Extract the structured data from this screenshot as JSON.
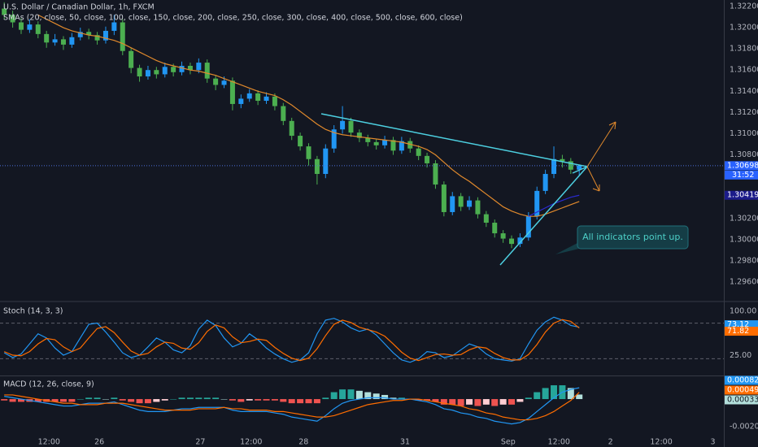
{
  "chart_data": [
    {
      "type": "candlestick",
      "title": "U.S. Dollar / Canadian Dollar, 1h, FXCM",
      "subtitle": "SMAs (20, close, 50, close, 100, close, 150, close, 200, close, 250, close, 300, close, 400, close, 500, close, 600, close)",
      "up_color": "#2196f3",
      "down_color": "#4caf50",
      "grid": true,
      "candles": [
        [
          1.3218,
          1.3224,
          1.3208,
          1.3212
        ],
        [
          1.3212,
          1.3216,
          1.32,
          1.3205
        ],
        [
          1.3205,
          1.3209,
          1.3194,
          1.3198
        ],
        [
          1.3198,
          1.3208,
          1.3195,
          1.3203
        ],
        [
          1.3203,
          1.3206,
          1.319,
          1.3194
        ],
        [
          1.3194,
          1.3197,
          1.3181,
          1.3186
        ],
        [
          1.3186,
          1.3194,
          1.3183,
          1.3189
        ],
        [
          1.3189,
          1.3192,
          1.3179,
          1.3184
        ],
        [
          1.3184,
          1.3195,
          1.3181,
          1.3191
        ],
        [
          1.3191,
          1.32,
          1.3188,
          1.3196
        ],
        [
          1.3196,
          1.3199,
          1.3189,
          1.3193
        ],
        [
          1.3193,
          1.3196,
          1.3184,
          1.3188
        ],
        [
          1.3188,
          1.3201,
          1.3185,
          1.3197
        ],
        [
          1.3197,
          1.3212,
          1.3193,
          1.3205
        ],
        [
          1.3205,
          1.3208,
          1.3174,
          1.3178
        ],
        [
          1.3178,
          1.3181,
          1.3157,
          1.3162
        ],
        [
          1.3162,
          1.3165,
          1.3149,
          1.3154
        ],
        [
          1.3154,
          1.3164,
          1.3151,
          1.316
        ],
        [
          1.316,
          1.3163,
          1.3152,
          1.3156
        ],
        [
          1.3156,
          1.3167,
          1.3153,
          1.3163
        ],
        [
          1.3163,
          1.3166,
          1.3154,
          1.3158
        ],
        [
          1.3158,
          1.3168,
          1.3155,
          1.3164
        ],
        [
          1.3164,
          1.3167,
          1.3156,
          1.316
        ],
        [
          1.316,
          1.3171,
          1.3157,
          1.3167
        ],
        [
          1.3167,
          1.317,
          1.3148,
          1.3152
        ],
        [
          1.3152,
          1.3155,
          1.3141,
          1.3146
        ],
        [
          1.3146,
          1.3154,
          1.3143,
          1.315
        ],
        [
          1.315,
          1.3153,
          1.3122,
          1.3128
        ],
        [
          1.3128,
          1.3137,
          1.3124,
          1.3133
        ],
        [
          1.3133,
          1.3142,
          1.313,
          1.3138
        ],
        [
          1.3138,
          1.3141,
          1.3127,
          1.3131
        ],
        [
          1.3131,
          1.3139,
          1.3128,
          1.3135
        ],
        [
          1.3135,
          1.3138,
          1.3122,
          1.3126
        ],
        [
          1.3126,
          1.3129,
          1.3108,
          1.3112
        ],
        [
          1.3112,
          1.3115,
          1.3094,
          1.3098
        ],
        [
          1.3098,
          1.3101,
          1.3084,
          1.3088
        ],
        [
          1.3088,
          1.3091,
          1.307,
          1.3076
        ],
        [
          1.3076,
          1.3079,
          1.3052,
          1.3062
        ],
        [
          1.3062,
          1.309,
          1.3058,
          1.3086
        ],
        [
          1.3086,
          1.3108,
          1.3082,
          1.3104
        ],
        [
          1.3104,
          1.3126,
          1.31,
          1.3112
        ],
        [
          1.3112,
          1.3115,
          1.3097,
          1.3101
        ],
        [
          1.3101,
          1.3104,
          1.3092,
          1.3096
        ],
        [
          1.3096,
          1.3099,
          1.3088,
          1.3092
        ],
        [
          1.3092,
          1.3095,
          1.3085,
          1.3089
        ],
        [
          1.3089,
          1.3098,
          1.3086,
          1.3094
        ],
        [
          1.3094,
          1.3097,
          1.308,
          1.3084
        ],
        [
          1.3084,
          1.3097,
          1.3081,
          1.3093
        ],
        [
          1.3093,
          1.3096,
          1.3082,
          1.3086
        ],
        [
          1.3086,
          1.3089,
          1.3075,
          1.3079
        ],
        [
          1.3079,
          1.3082,
          1.3068,
          1.3072
        ],
        [
          1.3072,
          1.3075,
          1.3048,
          1.3052
        ],
        [
          1.3052,
          1.3055,
          1.3022,
          1.3026
        ],
        [
          1.3026,
          1.3045,
          1.3023,
          1.3041
        ],
        [
          1.3041,
          1.3044,
          1.3027,
          1.3031
        ],
        [
          1.3031,
          1.3041,
          1.3028,
          1.3037
        ],
        [
          1.3037,
          1.304,
          1.302,
          1.3024
        ],
        [
          1.3024,
          1.3027,
          1.3012,
          1.3016
        ],
        [
          1.3016,
          1.3019,
          1.3002,
          1.3006
        ],
        [
          1.3006,
          1.3009,
          1.2997,
          1.3001
        ],
        [
          1.3001,
          1.3004,
          1.2992,
          1.2996
        ],
        [
          1.2996,
          1.3006,
          1.2993,
          1.3002
        ],
        [
          1.3002,
          1.3026,
          1.2999,
          1.3022
        ],
        [
          1.3022,
          1.305,
          1.3019,
          1.3046
        ],
        [
          1.3046,
          1.3066,
          1.3043,
          1.3062
        ],
        [
          1.3062,
          1.3088,
          1.3058,
          1.3076
        ],
        [
          1.3076,
          1.308,
          1.3068,
          1.3074
        ],
        [
          1.3074,
          1.3077,
          1.3062,
          1.3066
        ],
        [
          1.3066,
          1.30705,
          1.306,
          1.30698
        ]
      ],
      "series": [
        {
          "color": "#e0892c",
          "values": [
            null,
            null,
            null,
            null,
            1.3212,
            1.3208,
            1.3204,
            1.32,
            1.3197,
            1.3195,
            1.3193,
            1.3192,
            1.319,
            1.3188,
            1.3185,
            1.3181,
            1.3177,
            1.3173,
            1.3169,
            1.3166,
            1.3164,
            1.3162,
            1.316,
            1.3159,
            1.3157,
            1.3155,
            1.3152,
            1.3149,
            1.3146,
            1.3143,
            1.314,
            1.3138,
            1.3136,
            1.3132,
            1.3127,
            1.3121,
            1.3115,
            1.3109,
            1.3104,
            1.3101,
            1.3099,
            1.3098,
            1.3097,
            1.3096,
            1.3095,
            1.3094,
            1.3093,
            1.3092,
            1.309,
            1.3088,
            1.3085,
            1.308,
            1.3073,
            1.3066,
            1.306,
            1.3055,
            1.3049,
            1.3043,
            1.3037,
            1.3031,
            1.3027,
            1.3024,
            1.3022,
            1.3022,
            1.3024,
            1.3027,
            1.303,
            1.3033,
            1.3036
          ]
        },
        {
          "color": "#2a2ad0",
          "values": [
            null,
            null,
            null,
            null,
            null,
            null,
            null,
            null,
            null,
            null,
            null,
            null,
            null,
            null,
            null,
            null,
            null,
            null,
            null,
            null,
            null,
            null,
            null,
            null,
            null,
            null,
            null,
            null,
            null,
            null,
            null,
            null,
            null,
            null,
            null,
            null,
            null,
            null,
            null,
            null,
            null,
            null,
            null,
            null,
            null,
            null,
            null,
            null,
            null,
            null,
            null,
            null,
            null,
            null,
            null,
            null,
            null,
            null,
            null,
            null,
            null,
            null,
            1.3022,
            1.3026,
            1.303,
            1.3034,
            1.3037,
            1.304,
            1.30419
          ]
        }
      ],
      "countdown": "31:52",
      "annotation": "All indicators point up.",
      "ylim": [
        1.29424,
        1.32261
      ],
      "yticks": [
        {
          "value": 1.322,
          "label": "1.32200"
        },
        {
          "value": 1.32,
          "label": "1.32000"
        },
        {
          "value": 1.318,
          "label": "1.31800"
        },
        {
          "value": 1.316,
          "label": "1.31600"
        },
        {
          "value": 1.314,
          "label": "1.31400"
        },
        {
          "value": 1.312,
          "label": "1.31200"
        },
        {
          "value": 1.31,
          "label": "1.31000"
        },
        {
          "value": 1.308,
          "label": "1.30800"
        },
        {
          "value": 1.306,
          "label": "1.30600"
        },
        {
          "value": 1.304,
          "label": "1.30400"
        },
        {
          "value": 1.302,
          "label": "1.30200"
        },
        {
          "value": 1.3,
          "label": "1.30000"
        },
        {
          "value": 1.298,
          "label": "1.29800"
        },
        {
          "value": 1.296,
          "label": "1.29600"
        }
      ],
      "xlim": [
        -0.5,
        85.1
      ],
      "xticks": [
        {
          "value": 5.3,
          "label": "12:00"
        },
        {
          "value": 11.25,
          "label": "26"
        },
        {
          "value": 23.2,
          "label": "27"
        },
        {
          "value": 29.2,
          "label": "12:00"
        },
        {
          "value": 35.4,
          "label": "28"
        },
        {
          "value": 47.4,
          "label": "31"
        },
        {
          "value": 59.6,
          "label": "Sep"
        },
        {
          "value": 65.6,
          "label": "12:00"
        },
        {
          "value": 71.7,
          "label": "2"
        },
        {
          "value": 77.7,
          "label": "12:00"
        },
        {
          "value": 83.8,
          "label": "3"
        }
      ]
    },
    {
      "type": "line",
      "title": "Stoch (14, 3, 3)",
      "ylim": [
        -8.2,
        115
      ],
      "yticks": [
        {
          "value": 100,
          "label": "100.00"
        },
        {
          "value": 25,
          "label": "25.00"
        }
      ],
      "levels": [
        80,
        20
      ],
      "series": [
        {
          "color": "#2196f3",
          "values": [
            30,
            22,
            28,
            45,
            62,
            55,
            38,
            26,
            32,
            55,
            78,
            80,
            65,
            48,
            30,
            22,
            26,
            40,
            55,
            48,
            35,
            30,
            42,
            70,
            85,
            76,
            55,
            40,
            46,
            62,
            52,
            38,
            28,
            20,
            14,
            18,
            30,
            62,
            85,
            88,
            82,
            72,
            66,
            70,
            60,
            45,
            30,
            18,
            14,
            20,
            32,
            30,
            22,
            25,
            35,
            45,
            40,
            28,
            20,
            18,
            16,
            20,
            45,
            68,
            82,
            90,
            85,
            76,
            73.12
          ]
        },
        {
          "color": "#ff6d00",
          "values": [
            32,
            26,
            25,
            32,
            45,
            54,
            52,
            40,
            32,
            38,
            55,
            71,
            74,
            64,
            48,
            33,
            26,
            29,
            40,
            48,
            46,
            38,
            36,
            47,
            66,
            77,
            72,
            57,
            47,
            49,
            53,
            51,
            39,
            29,
            21,
            17,
            21,
            37,
            59,
            78,
            85,
            81,
            73,
            69,
            65,
            58,
            45,
            31,
            21,
            17,
            22,
            27,
            28,
            26,
            27,
            35,
            40,
            38,
            29,
            22,
            18,
            18,
            27,
            44,
            65,
            80,
            86,
            83,
            71.82
          ]
        }
      ]
    },
    {
      "type": "macd",
      "title": "MACD (12, 26, close, 9)",
      "ylim": [
        -0.00288,
        0.00165
      ],
      "yticks": [
        {
          "value": -0.002,
          "label": "-0.00200"
        }
      ],
      "histogram_colors": [
        "#26a69a",
        "#b2dfdb",
        "#ef5350",
        "#ffcdd2"
      ],
      "histogram": [
        -0.0001,
        -0.0002,
        -0.0002,
        -0.0002,
        -0.0002,
        -0.0002,
        -0.0002,
        -0.0002,
        -0.0002,
        0,
        0.0001,
        0.0001,
        0,
        0.0001,
        -0.0001,
        -0.0002,
        -0.0003,
        -0.0003,
        -0.0002,
        -0.0001,
        0,
        0.0001,
        0.0001,
        0.0001,
        0.0001,
        0.0001,
        0,
        -0.0001,
        -0.0002,
        -0.0001,
        -0.0001,
        -0.0001,
        -0.0001,
        -0.0002,
        -0.0003,
        -0.0003,
        -0.0003,
        -0.0003,
        0.0001,
        0.0005,
        0.0007,
        0.0007,
        0.0006,
        0.0005,
        0.0004,
        0.0003,
        0.0001,
        0.0001,
        0,
        -0.0001,
        -0.0001,
        -0.0002,
        -0.0004,
        -0.0004,
        -0.0005,
        -0.0004,
        -0.0005,
        -0.0004,
        -0.0005,
        -0.0004,
        -0.0004,
        -0.0002,
        0.0001,
        0.0005,
        0.0008,
        0.001,
        0.001,
        0.0008,
        0.00033
      ],
      "series": [
        {
          "color": "#2196f3",
          "values": [
            0.0002,
            0.0001,
            0,
            -0.0001,
            -0.0002,
            -0.0003,
            -0.0004,
            -0.0005,
            -0.0005,
            -0.0004,
            -0.0003,
            -0.0003,
            -0.0003,
            -0.0002,
            -0.0004,
            -0.0006,
            -0.0008,
            -0.0009,
            -0.0009,
            -0.0009,
            -0.0008,
            -0.0007,
            -0.0007,
            -0.0006,
            -0.0006,
            -0.0006,
            -0.0006,
            -0.0008,
            -0.0009,
            -0.0009,
            -0.0009,
            -0.0009,
            -0.001,
            -0.0011,
            -0.0013,
            -0.0014,
            -0.0015,
            -0.0016,
            -0.0012,
            -0.0007,
            -0.0003,
            -0.0001,
            0,
            0.0001,
            0.0001,
            0.0001,
            0,
            0,
            0,
            -0.0001,
            -0.0002,
            -0.0004,
            -0.0007,
            -0.0008,
            -0.001,
            -0.0011,
            -0.0013,
            -0.0014,
            -0.0016,
            -0.0017,
            -0.0018,
            -0.0017,
            -0.0014,
            -0.0009,
            -0.0004,
            0.0001,
            0.0005,
            0.0007,
            0.00082
          ]
        },
        {
          "color": "#ff6d00",
          "values": [
            0.0003,
            0.0003,
            0.0002,
            0.0001,
            0,
            -0.0001,
            -0.0002,
            -0.0003,
            -0.0003,
            -0.0004,
            -0.0004,
            -0.0004,
            -0.0003,
            -0.0003,
            -0.0003,
            -0.0004,
            -0.0005,
            -0.0006,
            -0.0007,
            -0.0008,
            -0.0008,
            -0.0008,
            -0.0008,
            -0.0007,
            -0.0007,
            -0.0007,
            -0.0006,
            -0.0007,
            -0.0007,
            -0.0008,
            -0.0008,
            -0.0008,
            -0.0009,
            -0.0009,
            -0.001,
            -0.0011,
            -0.0012,
            -0.0013,
            -0.0013,
            -0.0012,
            -0.001,
            -0.0008,
            -0.0006,
            -0.0004,
            -0.0003,
            -0.0002,
            -0.0001,
            -0.0001,
            0,
            0,
            -0.0001,
            -0.0002,
            -0.0003,
            -0.0004,
            -0.0005,
            -0.0007,
            -0.0008,
            -0.001,
            -0.0011,
            -0.0013,
            -0.0014,
            -0.0015,
            -0.0015,
            -0.0014,
            -0.0012,
            -0.0009,
            -0.0005,
            -0.0001,
            0.00049
          ]
        }
      ]
    }
  ]
}
